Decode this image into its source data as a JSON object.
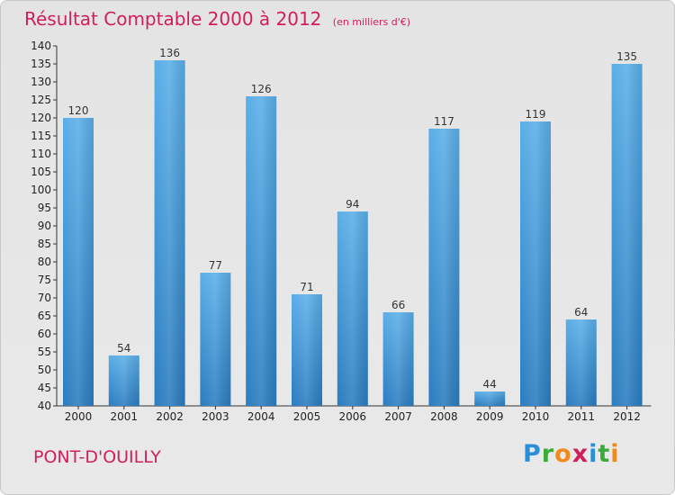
{
  "chart_data": {
    "type": "bar",
    "title": "Résultat Comptable 2000 à 2012",
    "subtitle": "(en milliers d'€)",
    "categories": [
      "2000",
      "2001",
      "2002",
      "2003",
      "2004",
      "2005",
      "2006",
      "2007",
      "2008",
      "2009",
      "2010",
      "2011",
      "2012"
    ],
    "values": [
      120,
      54,
      136,
      77,
      126,
      71,
      94,
      66,
      117,
      44,
      119,
      64,
      135
    ],
    "ylim": [
      40,
      140
    ],
    "ytick_step": 5,
    "xlabel": "",
    "ylabel": "",
    "grid": false,
    "bar_color_top": "#5aaee8",
    "bar_color_bottom": "#2a7cc0"
  },
  "footer": {
    "location": "PONT-D'OUILLY",
    "logo_letters": [
      "P",
      "r",
      "o",
      "x",
      "i",
      "t",
      "i"
    ]
  }
}
